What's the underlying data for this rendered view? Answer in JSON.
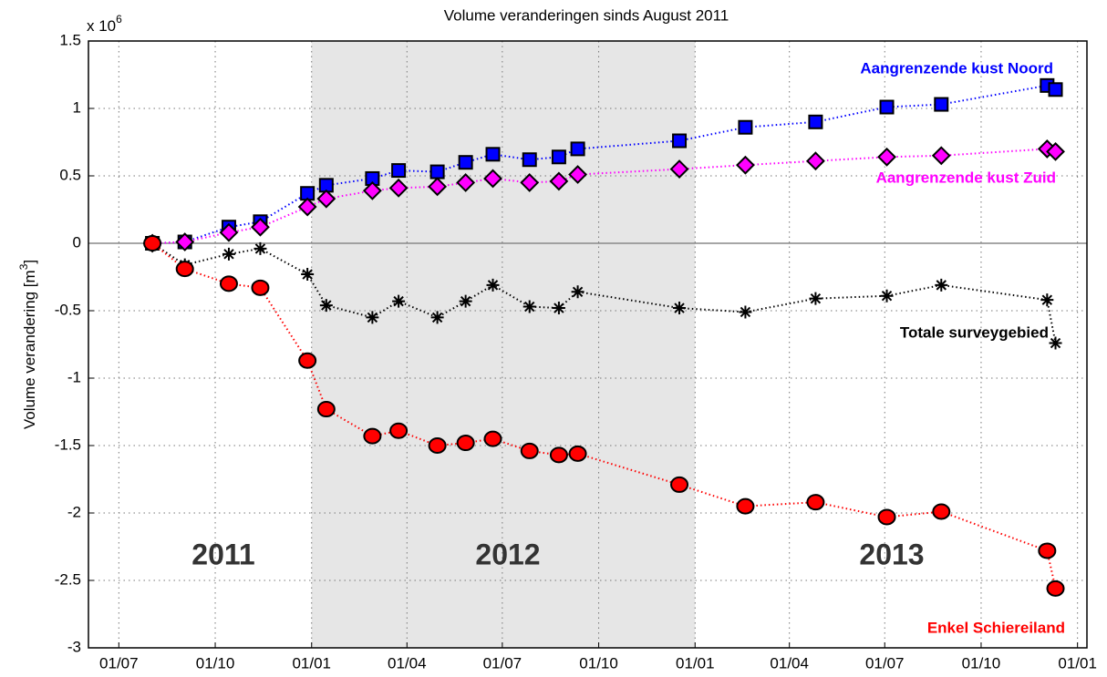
{
  "chart_data": {
    "type": "scatter",
    "title": "Volume veranderingen sinds August 2011",
    "y_multiplier": "x 10",
    "y_multiplier_exp": "6",
    "ylabel": [
      "Volume verandering [m",
      "3",
      "]"
    ],
    "x": [
      "2011-08-02",
      "2011-09-02",
      "2011-10-14",
      "2011-11-13",
      "2011-12-28",
      "2012-01-15",
      "2012-02-28",
      "2012-03-24",
      "2012-04-30",
      "2012-05-27",
      "2012-06-22",
      "2012-07-27",
      "2012-08-24",
      "2012-09-11",
      "2012-12-17",
      "2013-02-18",
      "2013-04-26",
      "2013-07-03",
      "2013-08-24",
      "2013-12-03",
      "2013-12-11"
    ],
    "series": [
      {
        "name": "Aangrenzende kust Noord",
        "color": "#0000ff",
        "marker": "square",
        "values": [
          0,
          0.01,
          0.12,
          0.16,
          0.37,
          0.43,
          0.48,
          0.54,
          0.53,
          0.6,
          0.66,
          0.62,
          0.64,
          0.7,
          0.76,
          0.86,
          0.9,
          1.01,
          1.03,
          1.17,
          1.14
        ]
      },
      {
        "name": "Aangrenzende kust Zuid",
        "color": "#ff00ff",
        "marker": "diamond",
        "values": [
          0,
          0.01,
          0.08,
          0.12,
          0.27,
          0.33,
          0.39,
          0.41,
          0.42,
          0.45,
          0.48,
          0.45,
          0.46,
          0.51,
          0.55,
          0.58,
          0.61,
          0.64,
          0.65,
          0.7,
          0.68
        ]
      },
      {
        "name": "Totale surveygebied",
        "color": "#000000",
        "marker": "asterisk",
        "values": [
          0,
          -0.16,
          -0.08,
          -0.04,
          -0.23,
          -0.46,
          -0.55,
          -0.43,
          -0.55,
          -0.43,
          -0.31,
          -0.47,
          -0.48,
          -0.36,
          -0.48,
          -0.51,
          -0.41,
          -0.39,
          -0.31,
          -0.42,
          -0.74
        ]
      },
      {
        "name": "Enkel Schiereiland",
        "color": "#ff0000",
        "marker": "circle",
        "values": [
          0,
          -0.19,
          -0.3,
          -0.33,
          -0.87,
          -1.23,
          -1.43,
          -1.39,
          -1.5,
          -1.48,
          -1.45,
          -1.54,
          -1.57,
          -1.56,
          -1.79,
          -1.95,
          -1.92,
          -2.03,
          -1.99,
          -2.28,
          -2.56
        ]
      }
    ],
    "xlim": [
      "2011-06-02",
      "2014-01-10"
    ],
    "xticks": [
      {
        "value": "2011-07-01",
        "label": "01/07"
      },
      {
        "value": "2011-10-01",
        "label": "01/10"
      },
      {
        "value": "2012-01-01",
        "label": "01/01"
      },
      {
        "value": "2012-04-01",
        "label": "01/04"
      },
      {
        "value": "2012-07-01",
        "label": "01/07"
      },
      {
        "value": "2012-10-01",
        "label": "01/10"
      },
      {
        "value": "2013-01-01",
        "label": "01/01"
      },
      {
        "value": "2013-04-01",
        "label": "01/04"
      },
      {
        "value": "2013-07-01",
        "label": "01/07"
      },
      {
        "value": "2013-10-01",
        "label": "01/10"
      },
      {
        "value": "2014-01-01",
        "label": "01/01"
      }
    ],
    "ylim": [
      -3,
      1.5
    ],
    "yticks": [
      -3,
      -2.5,
      -2,
      -1.5,
      -1,
      -0.5,
      0,
      0.5,
      1,
      1.5
    ],
    "grid": true,
    "shaded": [
      "2012-01-01",
      "2013-01-01"
    ],
    "annotations": [
      "2011",
      "2012",
      "2013"
    ]
  }
}
